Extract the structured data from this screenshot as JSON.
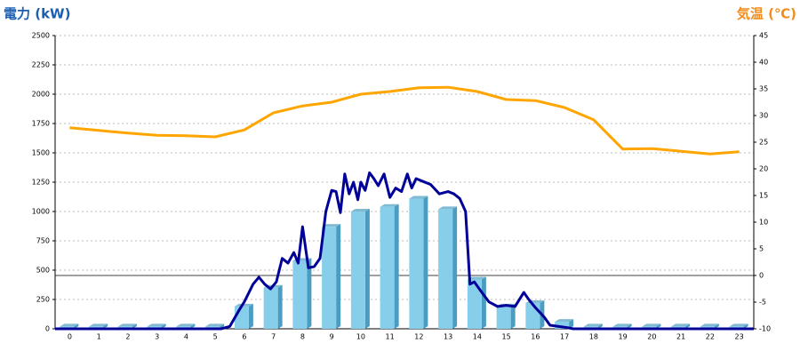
{
  "chart_data": {
    "type": "combo",
    "y_title": "電力 (kW)",
    "y2_title": "気温 (℃)",
    "categories": [
      "0",
      "1",
      "2",
      "3",
      "4",
      "5",
      "6",
      "7",
      "8",
      "9",
      "10",
      "11",
      "12",
      "13",
      "14",
      "15",
      "16",
      "17",
      "18",
      "19",
      "20",
      "21",
      "22",
      "23"
    ],
    "xlim": [
      -0.5,
      23.5
    ],
    "ylim": [
      0,
      2500
    ],
    "yticks": [
      0,
      250,
      500,
      750,
      1000,
      1250,
      1500,
      1750,
      2000,
      2250,
      2500
    ],
    "y2lim": [
      -10,
      45
    ],
    "y2ticks": [
      -10,
      -5,
      0,
      5,
      10,
      15,
      20,
      25,
      30,
      35,
      40,
      45
    ],
    "grid": true,
    "y2_zero_line": true,
    "series": [
      {
        "type": "bar",
        "color": "#87ceeb",
        "side_color": "#4a9cc0",
        "values": [
          20,
          20,
          20,
          20,
          20,
          20,
          190,
          350,
          580,
          870,
          1000,
          1040,
          1110,
          1020,
          420,
          190,
          220,
          60,
          20,
          20,
          20,
          20,
          20,
          20
        ]
      },
      {
        "type": "line",
        "color": "#000099",
        "x": [
          -0.5,
          5.2,
          5.5,
          5.8,
          6,
          6.3,
          6.5,
          6.7,
          6.9,
          7.1,
          7.3,
          7.5,
          7.7,
          7.85,
          8,
          8.2,
          8.4,
          8.6,
          8.8,
          9,
          9.15,
          9.3,
          9.45,
          9.6,
          9.75,
          9.9,
          10,
          10.15,
          10.3,
          10.45,
          10.6,
          10.8,
          11,
          11.2,
          11.4,
          11.6,
          11.75,
          11.9,
          12.1,
          12.4,
          12.7,
          13,
          13.2,
          13.4,
          13.6,
          13.75,
          13.9,
          14.1,
          14.4,
          14.7,
          15,
          15.3,
          15.6,
          15.8,
          16,
          16.3,
          16.5,
          16.8,
          17.1,
          17.3,
          23.5
        ],
        "values": [
          0,
          0,
          20,
          150,
          230,
          380,
          440,
          380,
          340,
          400,
          600,
          560,
          650,
          560,
          870,
          520,
          530,
          600,
          1000,
          1180,
          1170,
          990,
          1320,
          1150,
          1250,
          1100,
          1250,
          1180,
          1330,
          1280,
          1220,
          1320,
          1120,
          1200,
          1170,
          1320,
          1200,
          1280,
          1260,
          1230,
          1150,
          1170,
          1150,
          1110,
          1000,
          380,
          400,
          330,
          230,
          190,
          200,
          190,
          310,
          240,
          180,
          100,
          30,
          20,
          10,
          0,
          0
        ]
      },
      {
        "type": "line",
        "axis": "y2",
        "color": "#ffa500",
        "values": [
          27.7,
          27.2,
          26.7,
          26.3,
          26.2,
          26,
          27.3,
          30.5,
          31.8,
          32.5,
          34,
          34.5,
          35.2,
          35.3,
          34.5,
          33,
          32.8,
          31.5,
          29.2,
          23.7,
          23.8,
          23.3,
          22.8,
          23.2
        ]
      }
    ]
  }
}
